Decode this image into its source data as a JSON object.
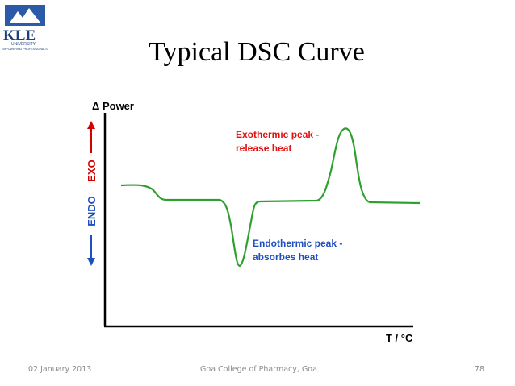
{
  "slide": {
    "title": "Typical DSC Curve",
    "logo": {
      "name": "KLE",
      "subtitle": "UNIVERSITY",
      "tagline": "EMPOWERING PROFESSIONALS"
    },
    "diagram": {
      "y_axis_label": "Δ Power",
      "x_axis_label": "T / °C",
      "exo_label": "EXO",
      "endo_label": "ENDO",
      "exo_annotation": [
        "Exothermic peak -",
        "release heat"
      ],
      "endo_annotation": [
        "Endothermic peak -",
        "absorbes heat"
      ]
    },
    "footer": {
      "date": "02 January 2013",
      "center": "Goa College of Pharmacy, Goa.",
      "page": "78"
    }
  }
}
